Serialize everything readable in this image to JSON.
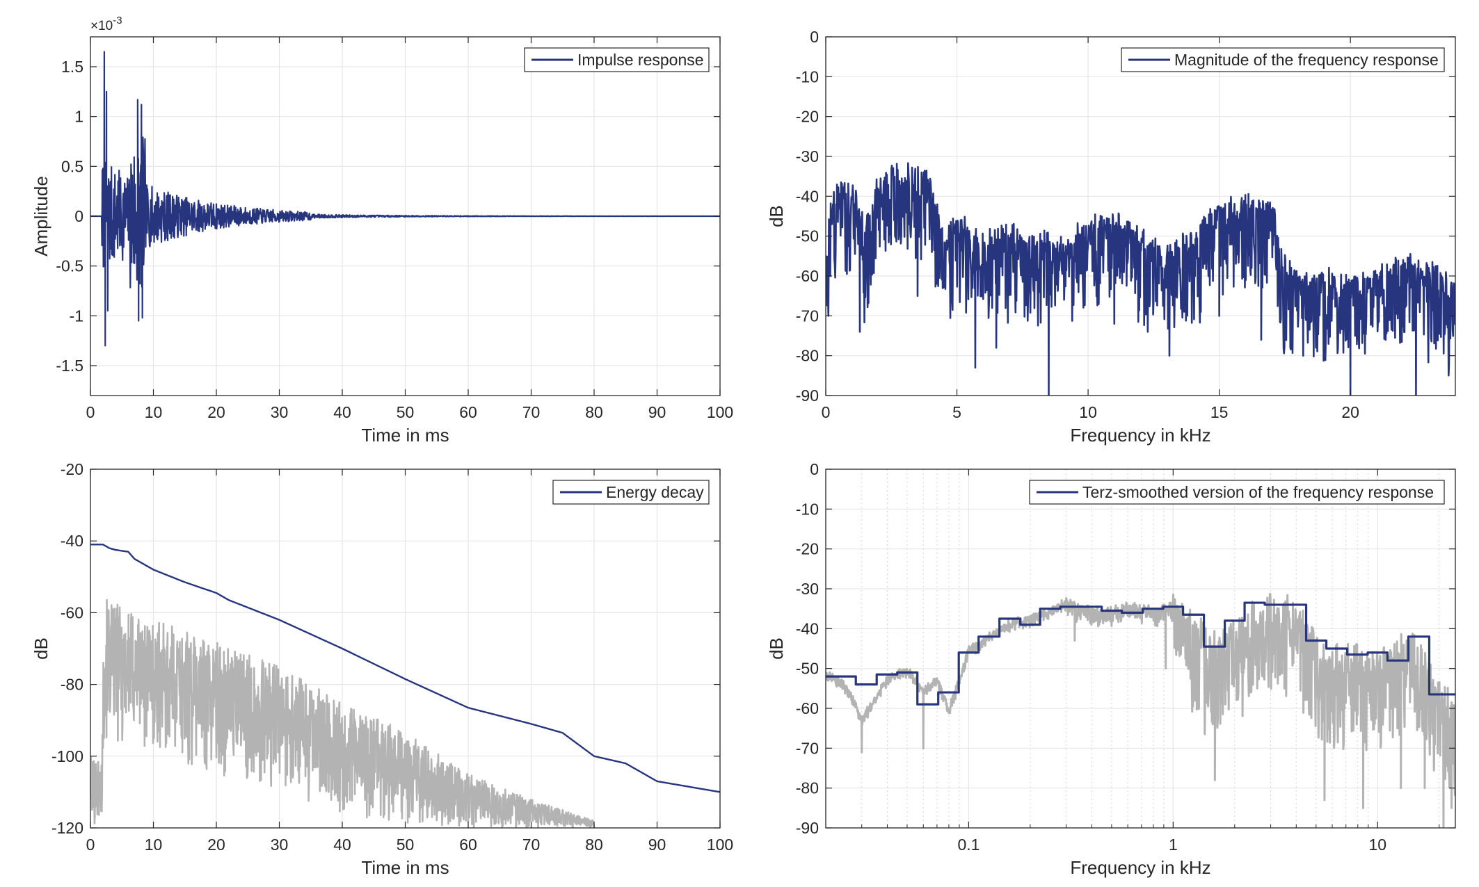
{
  "figure": {
    "background": "#ffffff",
    "series_color": "#27357e",
    "secondary_color": "#b3b3b3",
    "grid_color": "#e6e6e6",
    "axis_color": "#262626"
  },
  "chart_data": [
    {
      "id": "impulse",
      "type": "line",
      "title": "",
      "xlabel": "Time in ms",
      "ylabel": "Amplitude",
      "exponent_label": "×10",
      "exponent_power": "-3",
      "xlim": [
        0,
        100
      ],
      "ylim": [
        -1.8,
        1.8
      ],
      "xscale": "linear",
      "grid": true,
      "legend_position": "top-right",
      "xticks": [
        0,
        10,
        20,
        30,
        40,
        50,
        60,
        70,
        80,
        90,
        100
      ],
      "xtick_labels": [
        "0",
        "10",
        "20",
        "30",
        "40",
        "50",
        "60",
        "70",
        "80",
        "90",
        "100"
      ],
      "yticks": [
        -1.5,
        -1,
        -0.5,
        0,
        0.5,
        1,
        1.5
      ],
      "ytick_labels": [
        "-1.5",
        "-1",
        "-0.5",
        "0",
        "0.5",
        "1",
        "1.5"
      ],
      "series": [
        {
          "name": "Impulse response",
          "color": "#27357e",
          "style": "decaying-oscillation",
          "onset_ms": 2.2,
          "peak": 1.65,
          "trough": -1.3,
          "secondary_peak_ms": 7.5,
          "secondary_peak": 1.17,
          "secondary_trough": -1.05,
          "decay_ms": 12,
          "samples": 1800
        }
      ]
    },
    {
      "id": "magnitude",
      "type": "line",
      "title": "",
      "xlabel": "Frequency in kHz",
      "ylabel": "dB",
      "xlim": [
        0,
        24
      ],
      "ylim": [
        -90,
        0
      ],
      "xscale": "linear",
      "grid": true,
      "legend_position": "top-right",
      "xticks": [
        0,
        5,
        10,
        15,
        20
      ],
      "xtick_labels": [
        "0",
        "5",
        "10",
        "15",
        "20"
      ],
      "yticks": [
        0,
        -10,
        -20,
        -30,
        -40,
        -50,
        -60,
        -70,
        -80,
        -90
      ],
      "ytick_labels": [
        "0",
        "-10",
        "-20",
        "-30",
        "-40",
        "-50",
        "-60",
        "-70",
        "-80",
        "-90"
      ],
      "series": [
        {
          "name": "Magnitude of the frequency response",
          "color": "#27357e",
          "style": "noisy-envelope",
          "envelope_x": [
            0,
            0.2,
            0.5,
            1.0,
            1.5,
            2.0,
            2.5,
            3.0,
            3.5,
            4.0,
            4.5,
            5.0,
            6.0,
            7.0,
            8.0,
            9.0,
            10.0,
            11.0,
            12.0,
            13.0,
            14.0,
            15.0,
            16.0,
            17.0,
            17.5,
            18.0,
            19.0,
            20.0,
            21.0,
            22.0,
            23.0,
            24.0
          ],
          "envelope_y": [
            -60,
            -40,
            -38,
            -38,
            -48,
            -36,
            -32,
            -33,
            -34,
            -35,
            -50,
            -46,
            -50,
            -48,
            -50,
            -52,
            -47,
            -45,
            -50,
            -54,
            -50,
            -43,
            -41,
            -42,
            -57,
            -60,
            -60,
            -62,
            -59,
            -56,
            -58,
            -63
          ],
          "notches_x": [
            0.1,
            1.3,
            3.5,
            5.7,
            6.5,
            8.5,
            11.0,
            13.1,
            15.0,
            16.6,
            18.2,
            20.0,
            22.5,
            23.4
          ],
          "notches_y": [
            -70,
            -74,
            -65,
            -83,
            -78,
            -90,
            -72,
            -80,
            -70,
            -76,
            -80,
            -90,
            -90,
            -73
          ]
        }
      ]
    },
    {
      "id": "energy",
      "type": "line",
      "title": "",
      "xlabel": "Time in ms",
      "ylabel": "dB",
      "xlim": [
        0,
        100
      ],
      "ylim": [
        -120,
        -20
      ],
      "xscale": "linear",
      "grid": true,
      "legend_position": "top-right",
      "xticks": [
        0,
        10,
        20,
        30,
        40,
        50,
        60,
        70,
        80,
        90,
        100
      ],
      "xtick_labels": [
        "0",
        "10",
        "20",
        "30",
        "40",
        "50",
        "60",
        "70",
        "80",
        "90",
        "100"
      ],
      "yticks": [
        -120,
        -100,
        -80,
        -60,
        -40,
        -20
      ],
      "ytick_labels": [
        "-120",
        "-100",
        "-80",
        "-60",
        "-40",
        "-20"
      ],
      "series": [
        {
          "name": "Energy decay",
          "color": "#27357e",
          "x": [
            0,
            2,
            3,
            4,
            6,
            7,
            8,
            10,
            15,
            20,
            22,
            30,
            40,
            50,
            60,
            70,
            75,
            80,
            85,
            90,
            95,
            100
          ],
          "y": [
            -41,
            -41,
            -42,
            -42.5,
            -43,
            -45,
            -46,
            -48,
            -51.5,
            -54.5,
            -56.5,
            -62,
            -70,
            -78.5,
            -86.5,
            -91,
            -93.5,
            -100,
            -102,
            -107,
            -108.5,
            -110
          ]
        },
        {
          "name": "",
          "color": "#b3b3b3",
          "style": "noisy-decay",
          "x_start": 0,
          "x_end": 80,
          "envelope_x": [
            0,
            1.8,
            2.2,
            10,
            20,
            30,
            40,
            50,
            60,
            70,
            80
          ],
          "envelope_top": [
            -100,
            -100,
            -56,
            -62,
            -68,
            -75,
            -85,
            -93,
            -105,
            -112,
            -118
          ],
          "envelope_bottom": [
            -120,
            -120,
            -95,
            -100,
            -106,
            -110,
            -116,
            -120,
            -120,
            -120,
            -120
          ]
        }
      ]
    },
    {
      "id": "terz",
      "type": "line",
      "title": "",
      "xlabel": "Frequency in kHz",
      "ylabel": "dB",
      "xlim": [
        0.02,
        24
      ],
      "ylim": [
        -90,
        0
      ],
      "xscale": "log",
      "grid": true,
      "legend_position": "top-right",
      "xticks": [
        0.1,
        1,
        10
      ],
      "xtick_labels": [
        "0.1",
        "1",
        "10"
      ],
      "yticks": [
        0,
        -10,
        -20,
        -30,
        -40,
        -50,
        -60,
        -70,
        -80,
        -90
      ],
      "ytick_labels": [
        "0",
        "-10",
        "-20",
        "-30",
        "-40",
        "-50",
        "-60",
        "-70",
        "-80",
        "-90"
      ],
      "series": [
        {
          "name": "Terz-smoothed version of the frequency response",
          "color": "#27357e",
          "style": "step",
          "bands_kHz": [
            0.02,
            0.025,
            0.0315,
            0.04,
            0.05,
            0.063,
            0.08,
            0.1,
            0.125,
            0.16,
            0.2,
            0.25,
            0.315,
            0.4,
            0.5,
            0.63,
            0.8,
            1.0,
            1.25,
            1.6,
            2.0,
            2.5,
            3.15,
            4.0,
            5.0,
            6.3,
            8.0,
            10.0,
            12.5,
            16.0,
            20.0
          ],
          "values": [
            -52,
            -52,
            -54,
            -51.5,
            -51,
            -59,
            -56,
            -46,
            -42,
            -37.5,
            -39,
            -35,
            -34.5,
            -34.5,
            -35.5,
            -36,
            -35,
            -34.5,
            -36.5,
            -44.5,
            -38,
            -33.5,
            -34,
            -34,
            -43,
            -45,
            -46.5,
            -46,
            -48,
            -42,
            -56.5
          ]
        },
        {
          "name": "",
          "color": "#b3b3b3",
          "style": "noisy-envelope",
          "envelope_x": [
            0.02,
            0.025,
            0.03,
            0.04,
            0.05,
            0.06,
            0.07,
            0.08,
            0.1,
            0.13,
            0.16,
            0.2,
            0.25,
            0.3,
            0.4,
            0.5,
            0.6,
            0.8,
            1.0,
            1.3,
            1.5,
            2.0,
            2.5,
            3.0,
            4.0,
            5.0,
            6.0,
            8.0,
            10.0,
            12.0,
            15.0,
            18.0,
            20.0,
            24.0
          ],
          "envelope_y": [
            -51,
            -54,
            -62,
            -52,
            -50,
            -55,
            -52,
            -60,
            -45,
            -41,
            -38,
            -37,
            -35,
            -33,
            -35,
            -35,
            -34,
            -35,
            -34,
            -38,
            -44,
            -40,
            -35,
            -33,
            -35,
            -44,
            -47,
            -46,
            -48,
            -45,
            -43,
            -50,
            -56,
            -58
          ],
          "notches_x": [
            0.03,
            0.06,
            0.33,
            0.92,
            1.6,
            3.5,
            5.5,
            8.5,
            13,
            17,
            21,
            23
          ],
          "notches_y": [
            -71,
            -70,
            -43,
            -50,
            -78,
            -55,
            -83,
            -85,
            -80,
            -80,
            -90,
            -85
          ]
        }
      ]
    }
  ]
}
